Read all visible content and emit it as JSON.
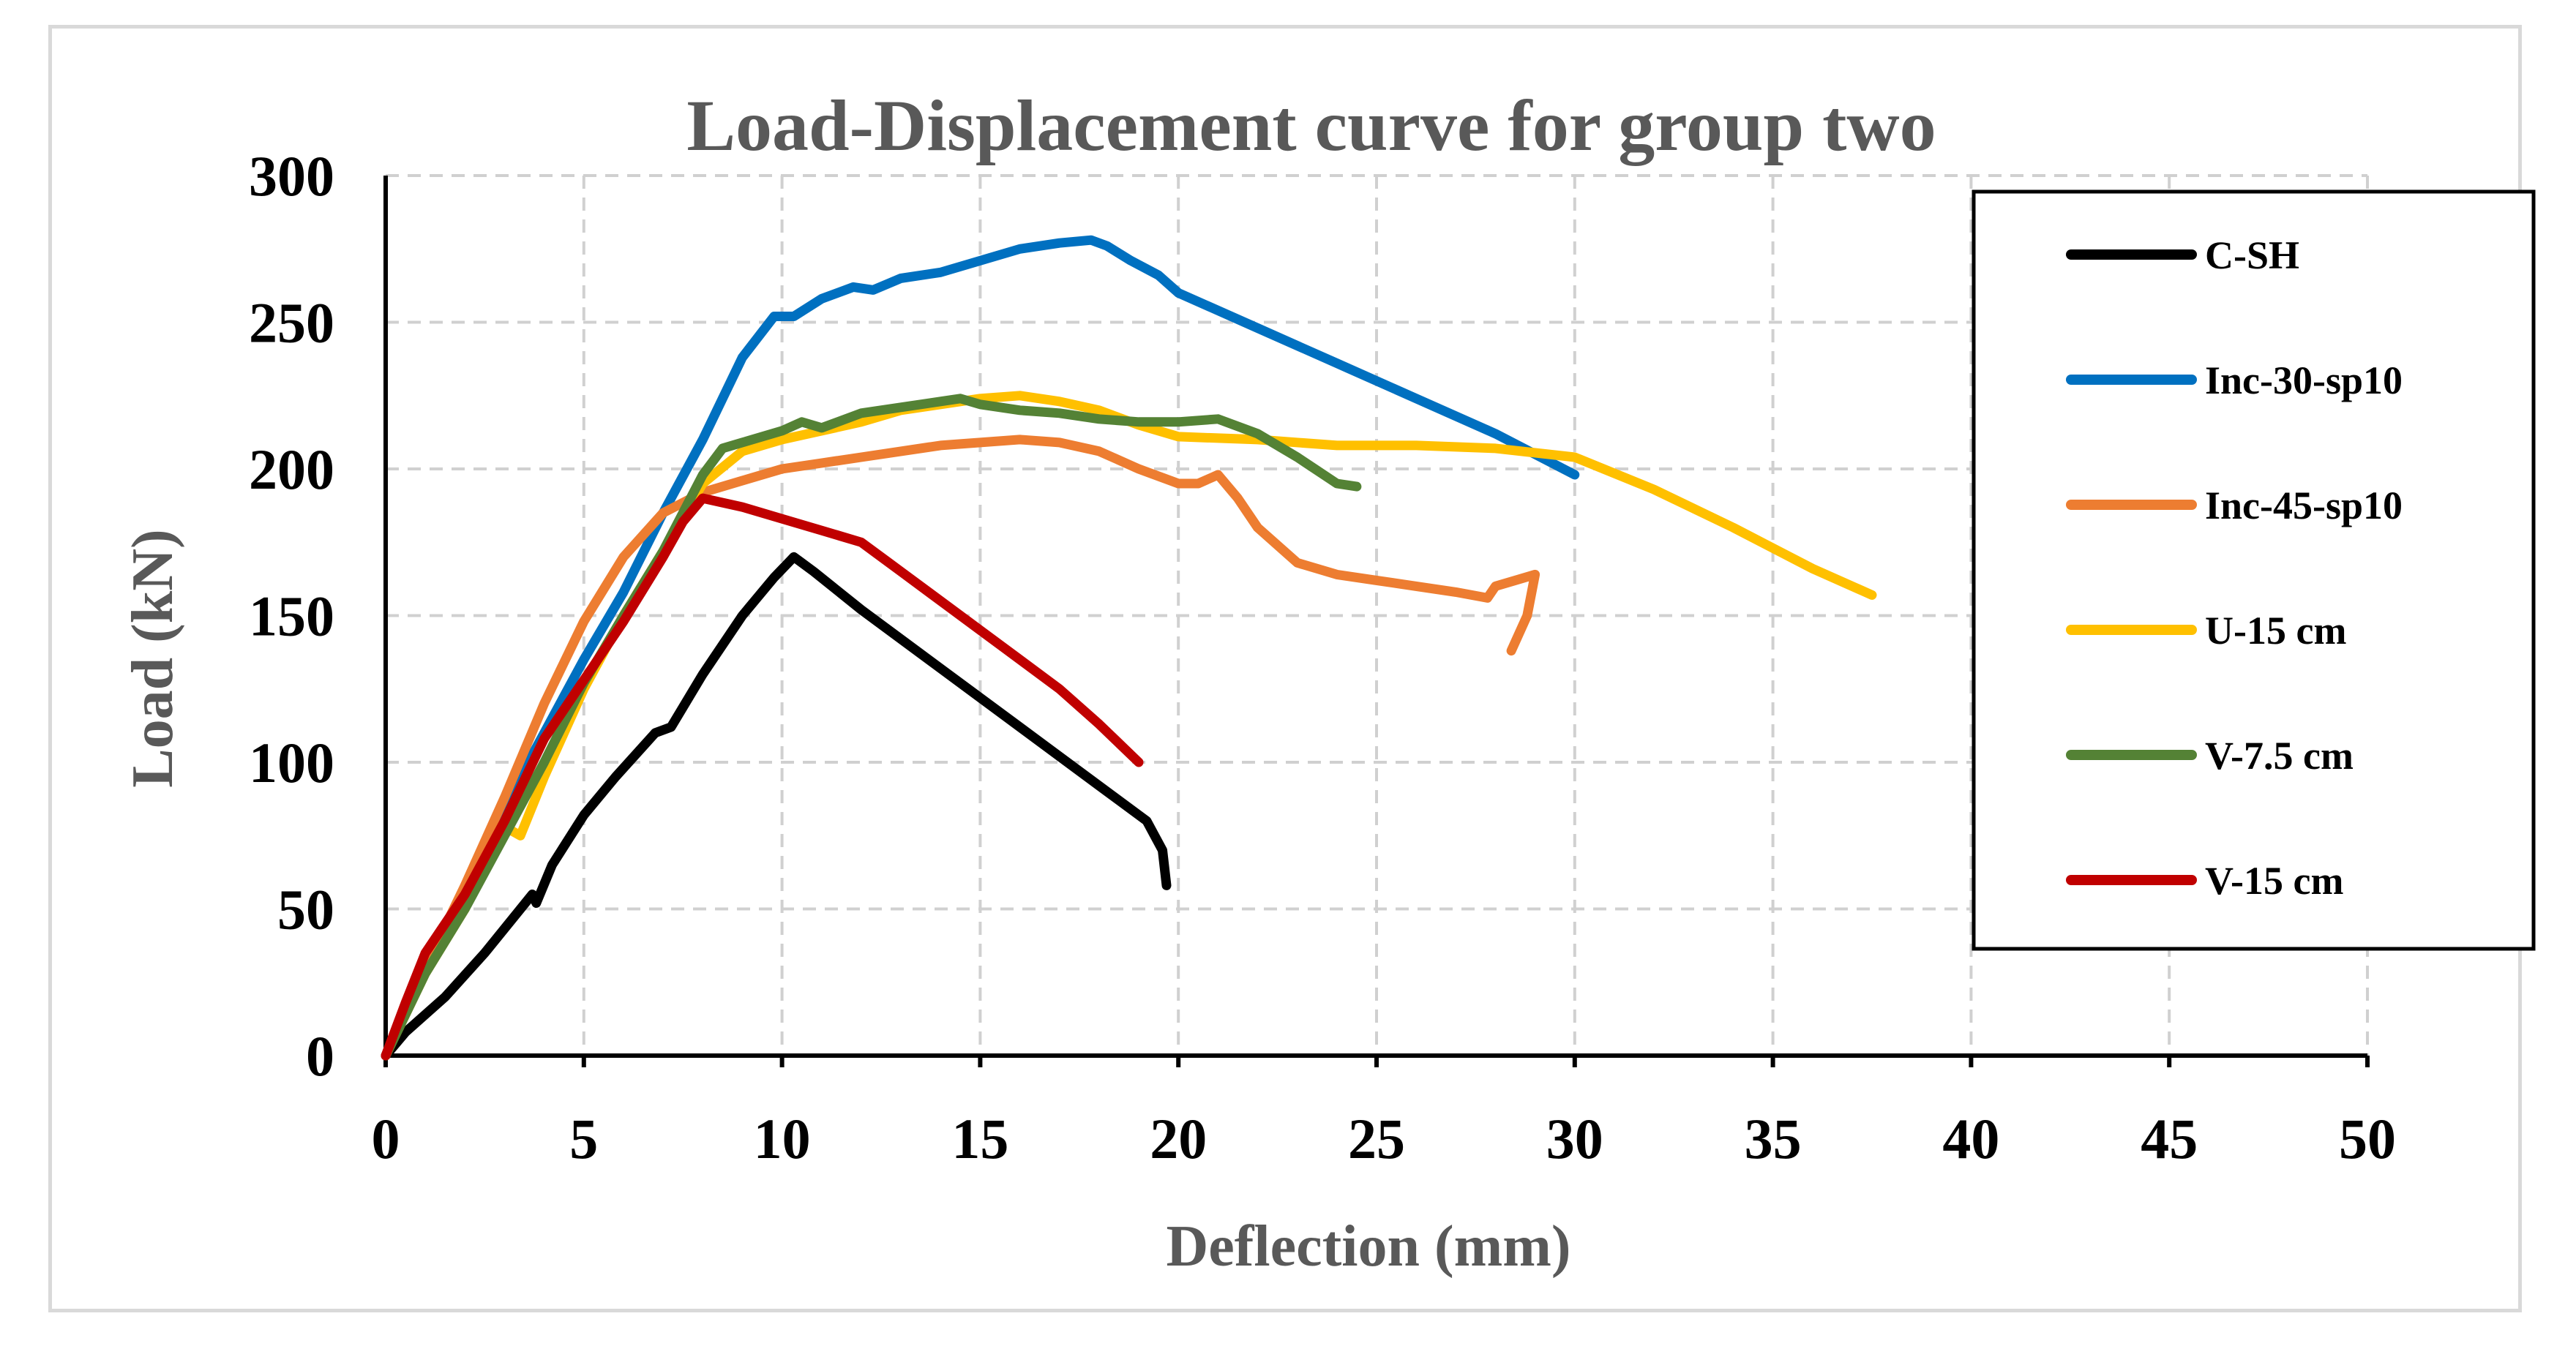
{
  "chart_data": {
    "type": "line",
    "title": "Load-Displacement curve for group two",
    "xlabel": "Deflection (mm)",
    "ylabel": "Load (kN)",
    "xlim": [
      0,
      50
    ],
    "ylim": [
      0,
      300
    ],
    "xticks": [
      0,
      5,
      10,
      15,
      20,
      25,
      30,
      35,
      40,
      45,
      50
    ],
    "yticks": [
      0,
      50,
      100,
      150,
      200,
      250,
      300
    ],
    "grid": true,
    "legend_position": "right",
    "series": [
      {
        "name": "C-SH",
        "color": "#000000",
        "points": [
          [
            0,
            0
          ],
          [
            0.5,
            8
          ],
          [
            1.5,
            20
          ],
          [
            2.5,
            35
          ],
          [
            3.7,
            55
          ],
          [
            3.8,
            52
          ],
          [
            4.2,
            65
          ],
          [
            5,
            82
          ],
          [
            5.8,
            95
          ],
          [
            6.8,
            110
          ],
          [
            7.2,
            112
          ],
          [
            8,
            130
          ],
          [
            9,
            150
          ],
          [
            9.8,
            163
          ],
          [
            10.3,
            170
          ],
          [
            10.8,
            165
          ],
          [
            12,
            152
          ],
          [
            14,
            132
          ],
          [
            16,
            112
          ],
          [
            18,
            92
          ],
          [
            19.2,
            80
          ],
          [
            19.6,
            70
          ],
          [
            19.7,
            58
          ]
        ]
      },
      {
        "name": "Inc-30-sp10",
        "color": "#0070C0",
        "points": [
          [
            0,
            0
          ],
          [
            1,
            30
          ],
          [
            2,
            55
          ],
          [
            3,
            85
          ],
          [
            4,
            110
          ],
          [
            5,
            135
          ],
          [
            6,
            158
          ],
          [
            7,
            185
          ],
          [
            8,
            210
          ],
          [
            9,
            238
          ],
          [
            9.8,
            252
          ],
          [
            10.3,
            252
          ],
          [
            11,
            258
          ],
          [
            11.8,
            262
          ],
          [
            12.3,
            261
          ],
          [
            13,
            265
          ],
          [
            14,
            267
          ],
          [
            15,
            271
          ],
          [
            16,
            275
          ],
          [
            17,
            277
          ],
          [
            17.8,
            278
          ],
          [
            18.2,
            276
          ],
          [
            18.8,
            271
          ],
          [
            19.5,
            266
          ],
          [
            20,
            260
          ],
          [
            22,
            248
          ],
          [
            24,
            236
          ],
          [
            26,
            224
          ],
          [
            28,
            212
          ],
          [
            30,
            198
          ]
        ]
      },
      {
        "name": "Inc-45-sp10",
        "color": "#ED7D31",
        "points": [
          [
            0,
            0
          ],
          [
            1,
            30
          ],
          [
            2,
            58
          ],
          [
            3,
            88
          ],
          [
            4,
            120
          ],
          [
            5,
            148
          ],
          [
            6,
            170
          ],
          [
            7,
            185
          ],
          [
            8,
            192
          ],
          [
            9,
            196
          ],
          [
            10,
            200
          ],
          [
            11,
            202
          ],
          [
            12,
            204
          ],
          [
            13,
            206
          ],
          [
            14,
            208
          ],
          [
            15,
            209
          ],
          [
            16,
            210
          ],
          [
            17,
            209
          ],
          [
            18,
            206
          ],
          [
            19,
            200
          ],
          [
            20,
            195
          ],
          [
            20.5,
            195
          ],
          [
            21,
            198
          ],
          [
            21.5,
            190
          ],
          [
            22,
            180
          ],
          [
            23,
            168
          ],
          [
            24,
            164
          ],
          [
            25,
            162
          ],
          [
            26,
            160
          ],
          [
            27,
            158
          ],
          [
            27.8,
            156
          ],
          [
            28,
            160
          ],
          [
            28.5,
            162
          ],
          [
            29,
            164
          ],
          [
            28.8,
            150
          ],
          [
            28.4,
            138
          ]
        ]
      },
      {
        "name": "U-15 cm",
        "color": "#FFC000",
        "points": [
          [
            0,
            0
          ],
          [
            1,
            28
          ],
          [
            2,
            50
          ],
          [
            3,
            78
          ],
          [
            3.4,
            75
          ],
          [
            4,
            95
          ],
          [
            5,
            125
          ],
          [
            6,
            150
          ],
          [
            7,
            172
          ],
          [
            8,
            195
          ],
          [
            9,
            206
          ],
          [
            10,
            210
          ],
          [
            11,
            213
          ],
          [
            12,
            216
          ],
          [
            13,
            220
          ],
          [
            14,
            222
          ],
          [
            15,
            224
          ],
          [
            16,
            225
          ],
          [
            17,
            223
          ],
          [
            18,
            220
          ],
          [
            19,
            215
          ],
          [
            20,
            211
          ],
          [
            22,
            210
          ],
          [
            24,
            208
          ],
          [
            26,
            208
          ],
          [
            28,
            207
          ],
          [
            30,
            204
          ],
          [
            32,
            193
          ],
          [
            34,
            180
          ],
          [
            36,
            166
          ],
          [
            37.5,
            157
          ]
        ]
      },
      {
        "name": "V-7.5 cm",
        "color": "#548235",
        "points": [
          [
            0,
            0
          ],
          [
            1,
            28
          ],
          [
            2,
            50
          ],
          [
            3,
            75
          ],
          [
            4,
            100
          ],
          [
            5,
            127
          ],
          [
            6,
            150
          ],
          [
            7,
            172
          ],
          [
            8,
            198
          ],
          [
            8.5,
            207
          ],
          [
            9,
            209
          ],
          [
            10,
            213
          ],
          [
            10.5,
            216
          ],
          [
            11,
            214
          ],
          [
            12,
            219
          ],
          [
            13,
            221
          ],
          [
            14,
            223
          ],
          [
            14.5,
            224
          ],
          [
            15,
            222
          ],
          [
            16,
            220
          ],
          [
            17,
            219
          ],
          [
            18,
            217
          ],
          [
            19,
            216
          ],
          [
            20,
            216
          ],
          [
            21,
            217
          ],
          [
            22,
            212
          ],
          [
            23,
            204
          ],
          [
            24,
            195
          ],
          [
            24.5,
            194
          ]
        ]
      },
      {
        "name": "V-15 cm",
        "color": "#C00000",
        "points": [
          [
            0,
            0
          ],
          [
            0.5,
            18
          ],
          [
            1,
            35
          ],
          [
            2,
            55
          ],
          [
            3,
            80
          ],
          [
            4,
            108
          ],
          [
            4.5,
            118
          ],
          [
            5,
            128
          ],
          [
            6,
            148
          ],
          [
            7,
            170
          ],
          [
            7.5,
            182
          ],
          [
            8,
            190
          ],
          [
            9,
            187
          ],
          [
            10,
            183
          ],
          [
            11,
            179
          ],
          [
            12,
            175
          ],
          [
            13,
            165
          ],
          [
            14,
            155
          ],
          [
            15,
            145
          ],
          [
            16,
            135
          ],
          [
            17,
            125
          ],
          [
            18,
            113
          ],
          [
            19,
            100
          ]
        ]
      }
    ]
  }
}
